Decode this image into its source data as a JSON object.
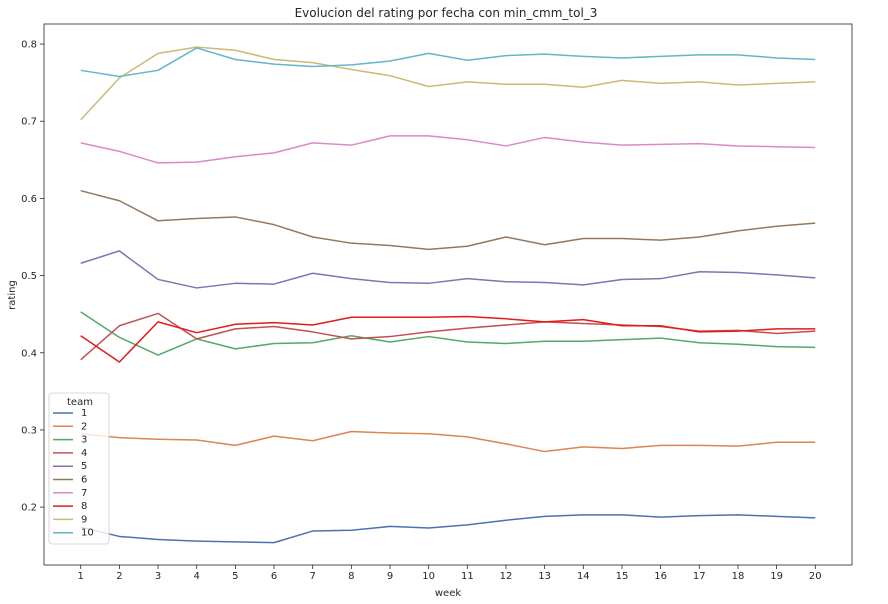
{
  "chart_data": {
    "type": "line",
    "title": "Evolucion del rating por fecha con min_cmm_tol_3",
    "xlabel": "week",
    "ylabel": "rating",
    "x": [
      1,
      2,
      3,
      4,
      5,
      6,
      7,
      8,
      9,
      10,
      11,
      12,
      13,
      14,
      15,
      16,
      17,
      18,
      19,
      20
    ],
    "xlim": [
      0.05,
      20.95
    ],
    "ylim": [
      0.125,
      0.826
    ],
    "yticks": [
      0.2,
      0.3,
      0.4,
      0.5,
      0.6,
      0.7,
      0.8
    ],
    "ytick_labels": [
      "0.2",
      "0.3",
      "0.4",
      "0.5",
      "0.6",
      "0.7",
      "0.8"
    ],
    "grid": false,
    "legend": {
      "title": "team",
      "placement": "lower-left"
    },
    "series": [
      {
        "name": "1",
        "color": "#4c72b0",
        "values": [
          0.174,
          0.162,
          0.158,
          0.156,
          0.155,
          0.154,
          0.169,
          0.17,
          0.175,
          0.173,
          0.177,
          0.183,
          0.188,
          0.19,
          0.19,
          0.187,
          0.189,
          0.19,
          0.188,
          0.186
        ]
      },
      {
        "name": "2",
        "color": "#dd8452",
        "values": [
          0.295,
          0.29,
          0.288,
          0.287,
          0.28,
          0.292,
          0.286,
          0.298,
          0.296,
          0.295,
          0.291,
          0.282,
          0.272,
          0.278,
          0.276,
          0.28,
          0.28,
          0.279,
          0.284,
          0.284
        ]
      },
      {
        "name": "3",
        "color": "#55a868",
        "values": [
          0.453,
          0.42,
          0.397,
          0.418,
          0.405,
          0.412,
          0.413,
          0.422,
          0.414,
          0.421,
          0.414,
          0.412,
          0.415,
          0.415,
          0.417,
          0.419,
          0.413,
          0.411,
          0.408,
          0.407
        ]
      },
      {
        "name": "4",
        "color": "#c44e52",
        "values": [
          0.391,
          0.435,
          0.451,
          0.418,
          0.431,
          0.434,
          0.427,
          0.418,
          0.421,
          0.427,
          0.432,
          0.436,
          0.44,
          0.438,
          0.436,
          0.434,
          0.428,
          0.429,
          0.425,
          0.428
        ]
      },
      {
        "name": "5",
        "color": "#8172b3",
        "values": [
          0.516,
          0.532,
          0.495,
          0.484,
          0.49,
          0.489,
          0.503,
          0.496,
          0.491,
          0.49,
          0.496,
          0.492,
          0.491,
          0.488,
          0.495,
          0.496,
          0.505,
          0.504,
          0.501,
          0.497
        ]
      },
      {
        "name": "6",
        "color": "#937860",
        "values": [
          0.61,
          0.597,
          0.571,
          0.574,
          0.576,
          0.566,
          0.55,
          0.542,
          0.539,
          0.534,
          0.538,
          0.55,
          0.54,
          0.548,
          0.548,
          0.546,
          0.55,
          0.558,
          0.564,
          0.568
        ]
      },
      {
        "name": "7",
        "color": "#da8bc3",
        "values": [
          0.672,
          0.661,
          0.646,
          0.647,
          0.654,
          0.659,
          0.672,
          0.669,
          0.681,
          0.681,
          0.676,
          0.668,
          0.679,
          0.673,
          0.669,
          0.67,
          0.671,
          0.668,
          0.667,
          0.666
        ]
      },
      {
        "name": "8",
        "color": "#e31a1c",
        "values": [
          0.422,
          0.388,
          0.44,
          0.426,
          0.437,
          0.439,
          0.436,
          0.446,
          0.446,
          0.446,
          0.447,
          0.444,
          0.44,
          0.443,
          0.435,
          0.435,
          0.427,
          0.428,
          0.431,
          0.431
        ]
      },
      {
        "name": "9",
        "color": "#ccb974",
        "values": [
          0.702,
          0.756,
          0.788,
          0.796,
          0.792,
          0.78,
          0.776,
          0.767,
          0.759,
          0.745,
          0.751,
          0.748,
          0.748,
          0.744,
          0.753,
          0.749,
          0.751,
          0.747,
          0.749,
          0.751
        ]
      },
      {
        "name": "10",
        "color": "#64b5cd",
        "values": [
          0.766,
          0.758,
          0.766,
          0.795,
          0.78,
          0.774,
          0.771,
          0.773,
          0.778,
          0.788,
          0.779,
          0.785,
          0.787,
          0.784,
          0.782,
          0.784,
          0.786,
          0.786,
          0.782,
          0.78
        ]
      }
    ]
  }
}
